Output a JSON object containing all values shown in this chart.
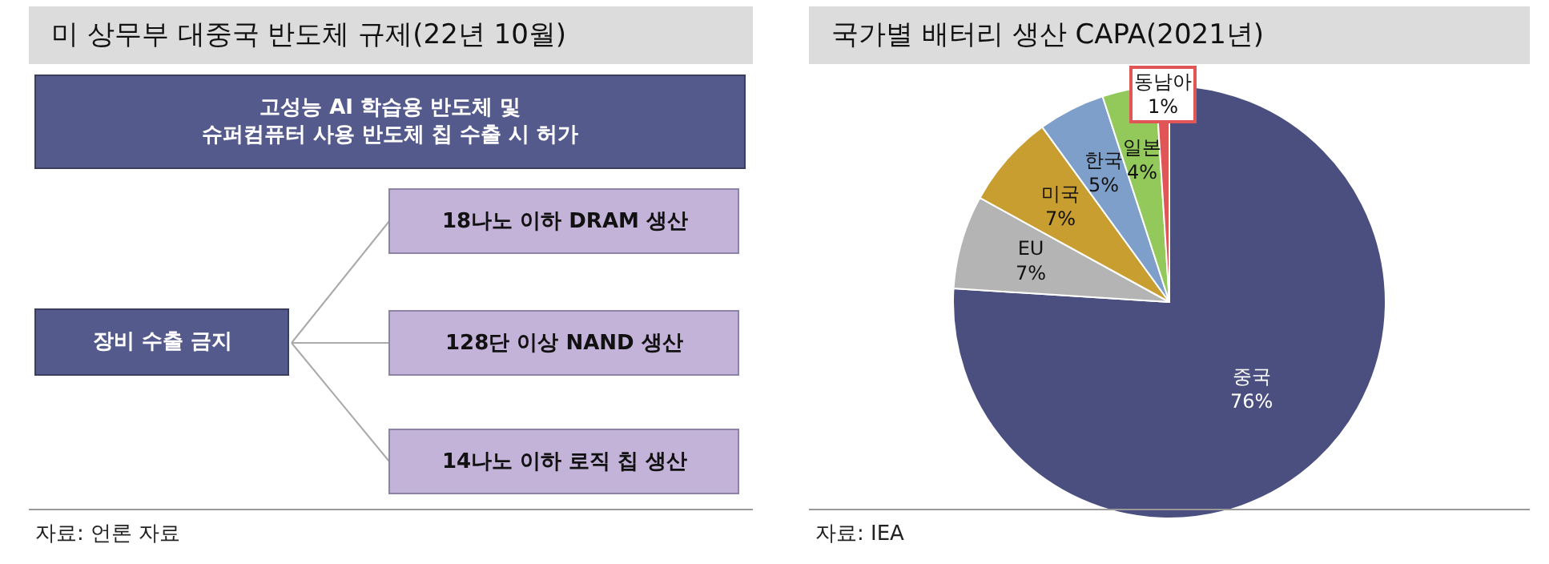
{
  "chart_data": [
    {
      "type": "other",
      "title": "미 상무부 대중국 반도체 규제(22년 10월)",
      "annotations": [
        "고성능 AI 학습용 반도체 및\n슈퍼컴퓨터 사용 반도체 칩 수출 시 허가",
        "장비 수출 금지",
        "18나노 이하 DRAM 생산",
        "128단 이상 NAND 생산",
        "14나노 이하 로직 칩 생산",
        "자료: 언론 자료"
      ]
    },
    {
      "type": "pie",
      "title": "국가별 배터리 생산 CAPA(2021년)",
      "categories": [
        "중국",
        "EU",
        "미국",
        "한국",
        "일본",
        "동남아"
      ],
      "values": [
        76,
        7,
        7,
        5,
        4,
        1
      ],
      "value_labels": [
        "76%",
        "7%",
        "7%",
        "5%",
        "4%",
        "1%"
      ],
      "colors": [
        "#4a4f7f",
        "#b4b4b4",
        "#c99e30",
        "#7f9fcb",
        "#92c95a",
        "#e05555"
      ],
      "data_labels": true,
      "annotations": [
        "자료: IEA"
      ]
    }
  ]
}
